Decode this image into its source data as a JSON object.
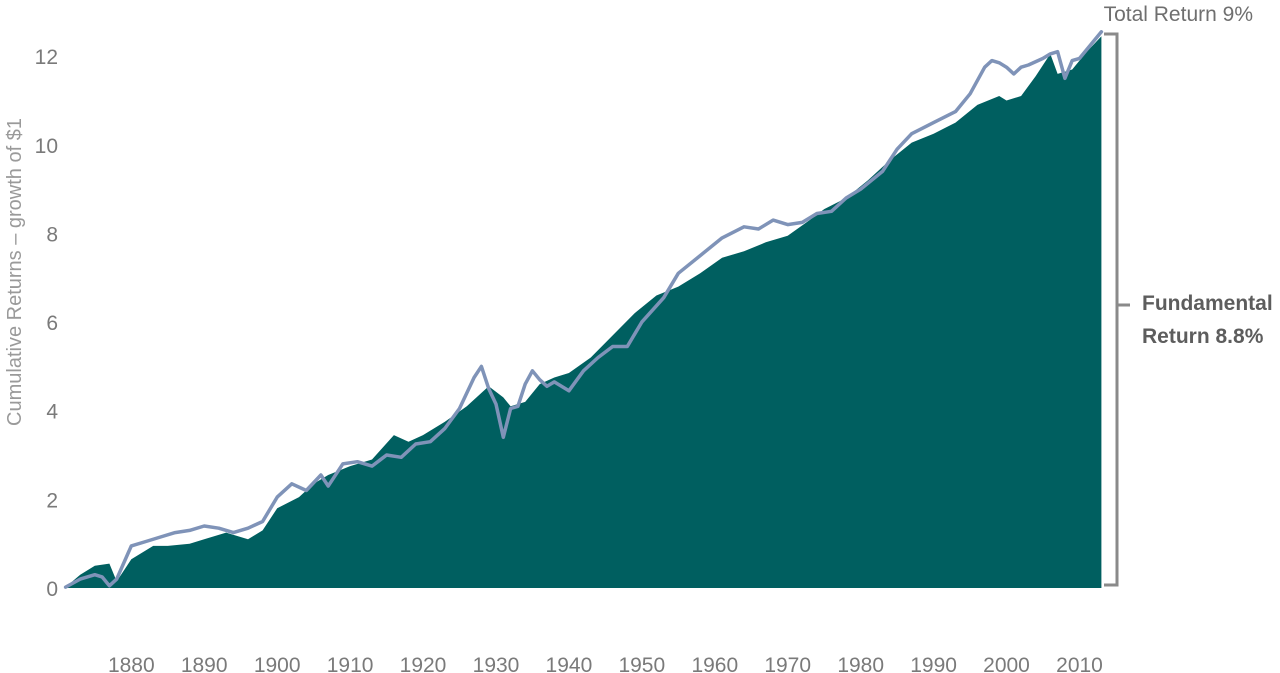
{
  "chart_data": {
    "type": "area",
    "ylabel": "Cumulative Returns – growth of $1",
    "xlabel": "",
    "xlim": [
      1870.5,
      2013.5
    ],
    "ylim": [
      0,
      12.5
    ],
    "x_ticks": [
      "1880",
      "1890",
      "1900",
      "1910",
      "1920",
      "1930",
      "1940",
      "1950",
      "1960",
      "1970",
      "1980",
      "1990",
      "2000",
      "2010"
    ],
    "y_ticks": [
      "0",
      "2",
      "4",
      "6",
      "8",
      "10",
      "12"
    ],
    "grid": false,
    "series": [
      {
        "name": "Fundamental Return 8.8%",
        "style": "area",
        "color": "#005f60",
        "x": [
          1871,
          1873,
          1875,
          1877,
          1878,
          1880,
          1883,
          1885,
          1888,
          1890,
          1893,
          1896,
          1898,
          1900,
          1903,
          1905,
          1907,
          1910,
          1913,
          1916,
          1918,
          1920,
          1923,
          1926,
          1929,
          1931,
          1932,
          1934,
          1936,
          1938,
          1940,
          1943,
          1946,
          1949,
          1952,
          1955,
          1958,
          1961,
          1964,
          1967,
          1970,
          1973,
          1975,
          1978,
          1981,
          1984,
          1987,
          1990,
          1993,
          1996,
          1999,
          2000,
          2002,
          2004,
          2006,
          2007,
          2009,
          2011,
          2013
        ],
        "y": [
          0.02,
          0.3,
          0.5,
          0.55,
          0.15,
          0.65,
          0.95,
          0.95,
          1.0,
          1.1,
          1.25,
          1.1,
          1.3,
          1.8,
          2.05,
          2.35,
          2.55,
          2.75,
          2.9,
          3.45,
          3.3,
          3.45,
          3.75,
          4.1,
          4.55,
          4.3,
          4.1,
          4.2,
          4.6,
          4.75,
          4.85,
          5.2,
          5.7,
          6.2,
          6.6,
          6.8,
          7.1,
          7.45,
          7.6,
          7.8,
          7.95,
          8.3,
          8.55,
          8.8,
          9.2,
          9.65,
          10.05,
          10.25,
          10.5,
          10.9,
          11.1,
          11.0,
          11.1,
          11.55,
          12.05,
          11.6,
          11.7,
          12.1,
          12.45
        ]
      },
      {
        "name": "Total Return 9%",
        "style": "line",
        "color": "#7f93b8",
        "x": [
          1871,
          1873,
          1875,
          1876,
          1877,
          1878,
          1880,
          1882,
          1884,
          1886,
          1888,
          1890,
          1892,
          1894,
          1896,
          1898,
          1900,
          1902,
          1904,
          1906,
          1907,
          1909,
          1911,
          1913,
          1915,
          1917,
          1919,
          1921,
          1923,
          1925,
          1927,
          1928,
          1929,
          1930,
          1931,
          1932,
          1933,
          1934,
          1935,
          1936,
          1937,
          1938,
          1940,
          1942,
          1944,
          1946,
          1948,
          1950,
          1953,
          1955,
          1958,
          1961,
          1964,
          1966,
          1968,
          1970,
          1972,
          1974,
          1976,
          1978,
          1980,
          1983,
          1985,
          1987,
          1990,
          1993,
          1995,
          1997,
          1998,
          1999,
          2000,
          2001,
          2002,
          2003,
          2005,
          2006,
          2007,
          2008,
          2009,
          2010,
          2011,
          2013
        ],
        "y": [
          0.02,
          0.2,
          0.3,
          0.25,
          0.05,
          0.2,
          0.95,
          1.05,
          1.15,
          1.25,
          1.3,
          1.4,
          1.35,
          1.25,
          1.35,
          1.5,
          2.05,
          2.35,
          2.2,
          2.55,
          2.3,
          2.8,
          2.85,
          2.75,
          3.0,
          2.95,
          3.25,
          3.3,
          3.6,
          4.05,
          4.75,
          5.0,
          4.5,
          4.15,
          3.4,
          4.05,
          4.1,
          4.6,
          4.9,
          4.7,
          4.55,
          4.65,
          4.45,
          4.9,
          5.2,
          5.45,
          5.45,
          6.0,
          6.55,
          7.1,
          7.5,
          7.9,
          8.15,
          8.1,
          8.3,
          8.2,
          8.25,
          8.45,
          8.5,
          8.8,
          9.0,
          9.4,
          9.9,
          10.25,
          10.5,
          10.75,
          11.15,
          11.75,
          11.9,
          11.85,
          11.75,
          11.6,
          11.75,
          11.8,
          11.95,
          12.05,
          12.1,
          11.5,
          11.9,
          11.95,
          12.15,
          12.55
        ]
      }
    ],
    "annotations": {
      "total_return": "Total Return 9%",
      "fundamental_line1": "Fundamental",
      "fundamental_line2": "Return 8.8%"
    },
    "colors": {
      "area": "#005f60",
      "line": "#7f93b8",
      "bracket": "#8a8a8a",
      "tick_text": "#7a7a7a"
    }
  }
}
